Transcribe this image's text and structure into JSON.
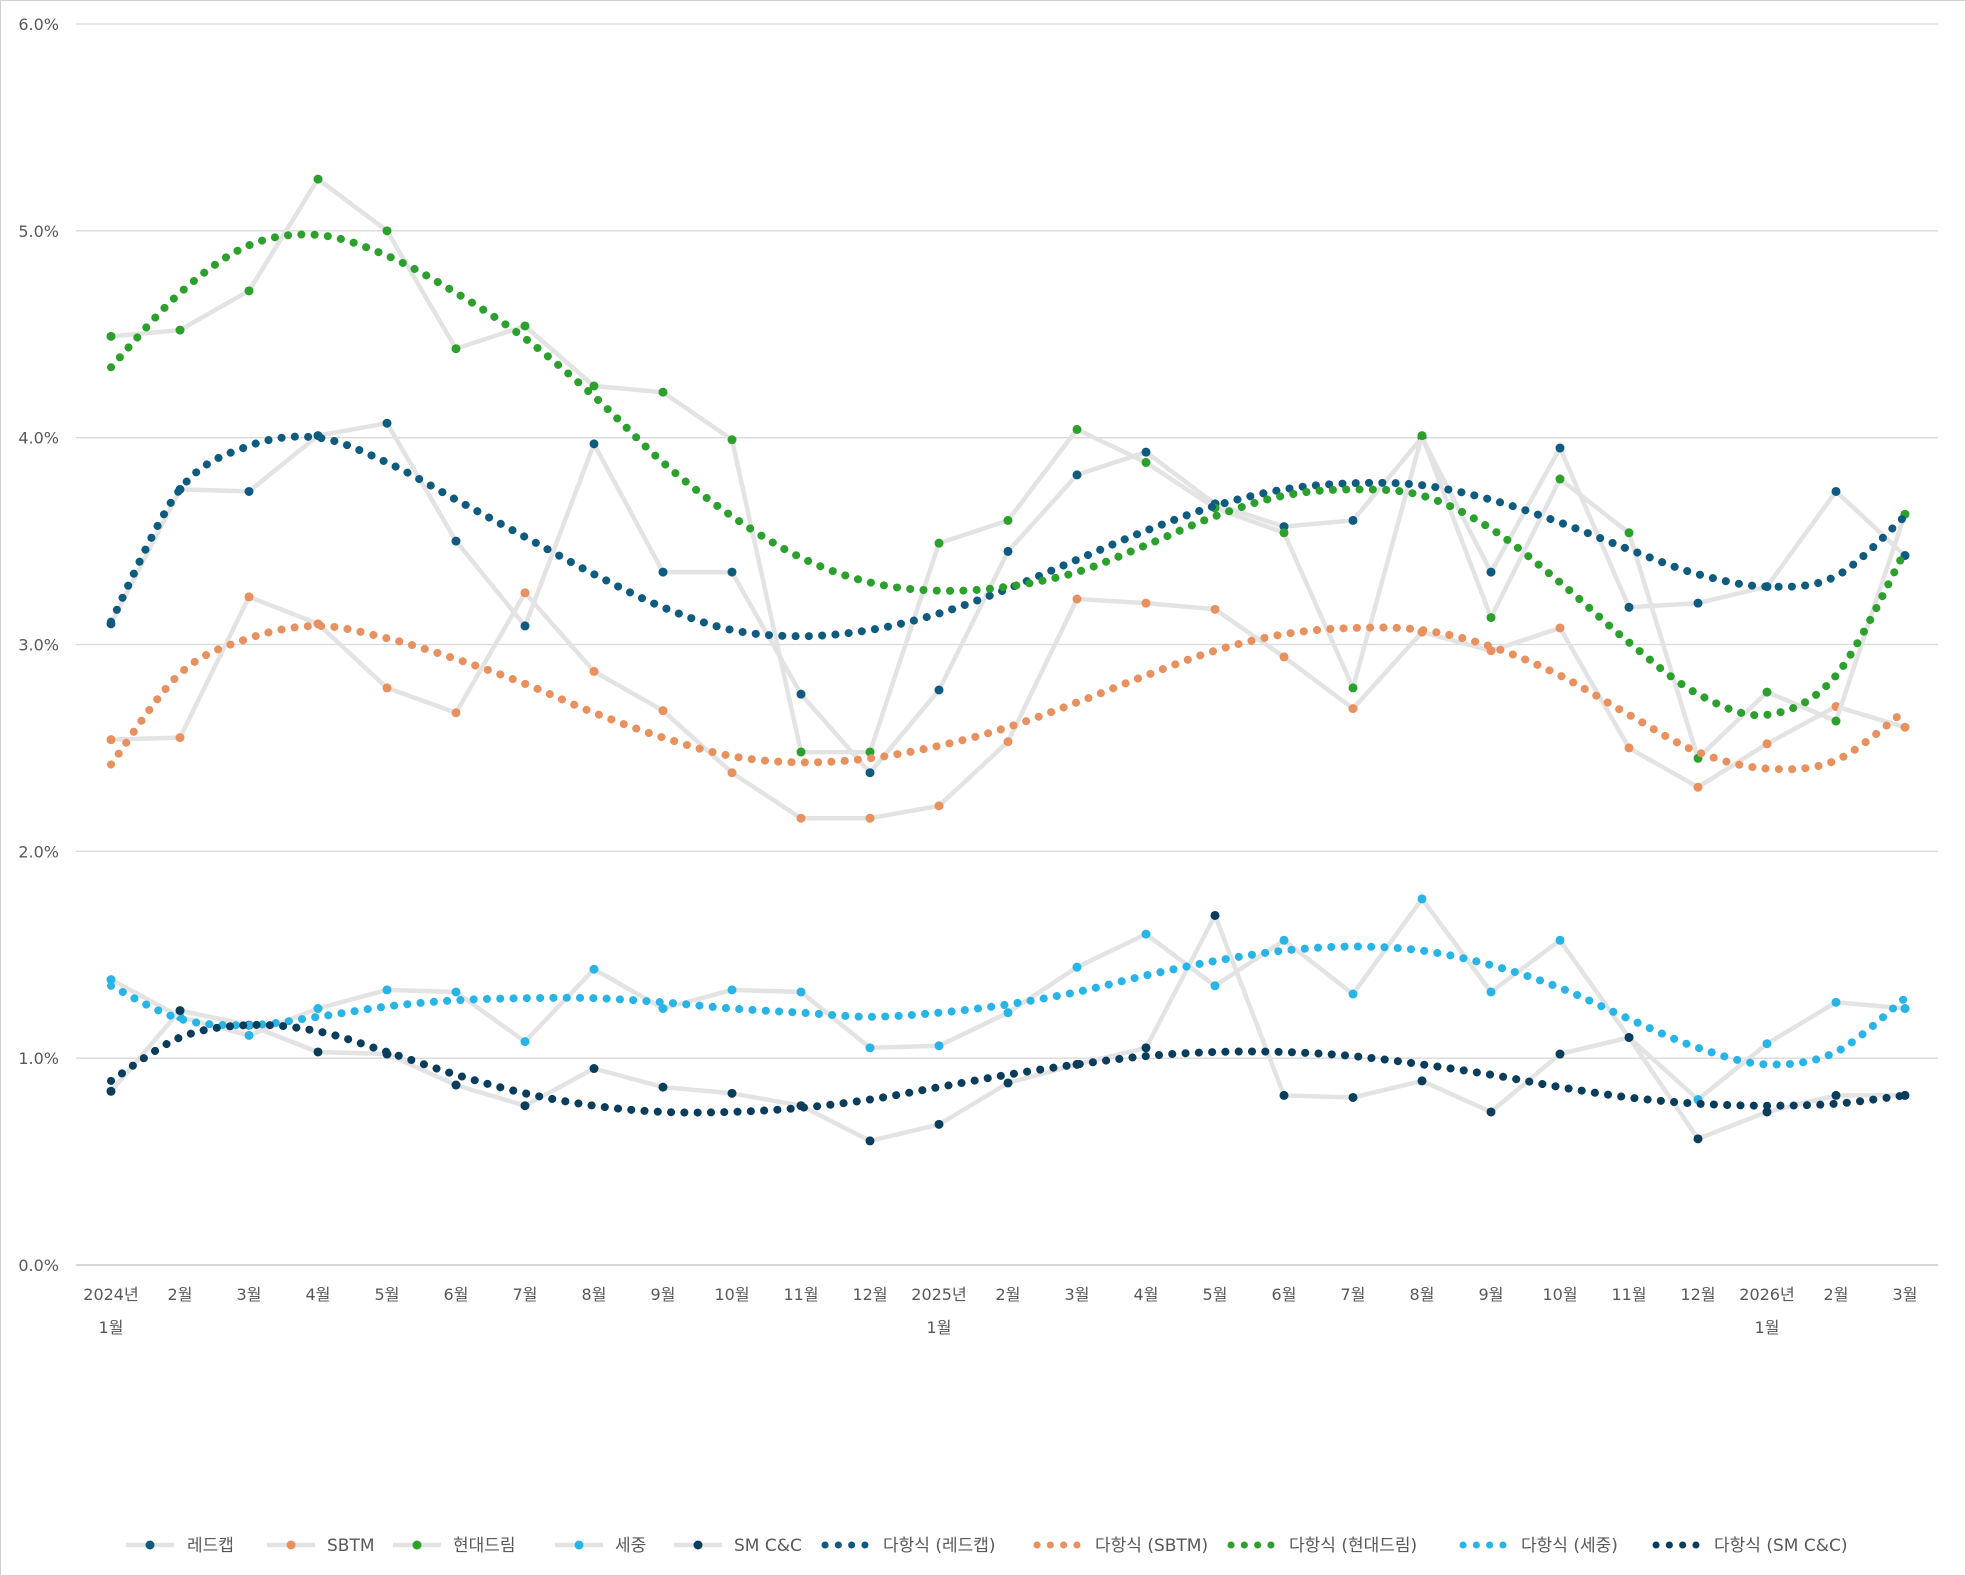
{
  "chart_data": {
    "type": "line",
    "title": "",
    "xlabel": "",
    "ylabel": "",
    "ylim": [
      0,
      0.06
    ],
    "yticks": [
      "0.0%",
      "1.0%",
      "2.0%",
      "3.0%",
      "4.0%",
      "5.0%",
      "6.0%"
    ],
    "grid": true,
    "legend_position": "bottom",
    "categories": [
      [
        "2024년",
        "1월"
      ],
      [
        "2월"
      ],
      [
        "3월"
      ],
      [
        "4월"
      ],
      [
        "5월"
      ],
      [
        "6월"
      ],
      [
        "7월"
      ],
      [
        "8월"
      ],
      [
        "9월"
      ],
      [
        "10월"
      ],
      [
        "11월"
      ],
      [
        "12월"
      ],
      [
        "2025년",
        "1월"
      ],
      [
        "2월"
      ],
      [
        "3월"
      ],
      [
        "4월"
      ],
      [
        "5월"
      ],
      [
        "6월"
      ],
      [
        "7월"
      ],
      [
        "8월"
      ],
      [
        "9월"
      ],
      [
        "10월"
      ],
      [
        "11월"
      ],
      [
        "12월"
      ],
      [
        "2026년",
        "1월"
      ],
      [
        "2월"
      ],
      [
        "3월"
      ]
    ],
    "series": [
      {
        "name": "레드캡",
        "color": "#0f5b80",
        "values": [
          0.031,
          0.0375,
          0.0374,
          0.0401,
          0.0407,
          0.035,
          0.0309,
          0.0397,
          0.0335,
          0.0335,
          0.0276,
          0.0238,
          0.0278,
          0.0345,
          0.0382,
          0.0393,
          0.0368,
          0.0357,
          0.036,
          0.04,
          0.0335,
          0.0395,
          0.0318,
          0.032,
          0.0328,
          0.0374,
          0.0343
        ]
      },
      {
        "name": "SBTM",
        "color": "#e8915e",
        "values": [
          0.0254,
          0.0255,
          0.0323,
          0.031,
          0.0279,
          0.0267,
          0.0325,
          0.0287,
          0.0268,
          0.0238,
          0.0216,
          0.0216,
          0.0222,
          0.0253,
          0.0322,
          0.032,
          0.0317,
          0.0294,
          0.0269,
          0.0306,
          0.0297,
          0.0308,
          0.025,
          0.0231,
          0.0252,
          0.027,
          0.026
        ]
      },
      {
        "name": "현대드림",
        "color": "#2ca02c",
        "values": [
          0.0449,
          0.0452,
          0.0471,
          0.0525,
          0.05,
          0.0443,
          0.0454,
          0.0425,
          0.0422,
          0.0399,
          0.0248,
          0.0248,
          0.0349,
          0.036,
          0.0404,
          0.0388,
          0.0366,
          0.0354,
          0.0279,
          0.0401,
          0.0313,
          0.038,
          0.0354,
          0.0245,
          0.0277,
          0.0263,
          0.0363
        ]
      },
      {
        "name": "세중",
        "color": "#28b4e6",
        "values": [
          0.0138,
          0.012,
          0.0111,
          0.0124,
          0.0133,
          0.0132,
          0.0108,
          0.0143,
          0.0124,
          0.0133,
          0.0132,
          0.0105,
          0.0106,
          0.0122,
          0.0144,
          0.016,
          0.0135,
          0.0157,
          0.0131,
          0.0177,
          0.0132,
          0.0157,
          0.011,
          0.008,
          0.0107,
          0.0127,
          0.0124
        ]
      },
      {
        "name": "SM C&C",
        "color": "#0a3d5c",
        "values": [
          0.0084,
          0.0123,
          0.0116,
          0.0103,
          0.0102,
          0.0087,
          0.0077,
          0.0095,
          0.0086,
          0.0083,
          0.0077,
          0.006,
          0.0068,
          0.0088,
          0.0097,
          0.0105,
          0.0169,
          0.0082,
          0.0081,
          0.0089,
          0.0074,
          0.0102,
          0.011,
          0.0061,
          0.0074,
          0.0082,
          0.0082
        ]
      }
    ],
    "trendlines": [
      {
        "name": "다항식 (레드캡)",
        "color": "#0f5b80",
        "values": [
          0.0311,
          0.0375,
          0.0396,
          0.04,
          0.0388,
          0.037,
          0.0352,
          0.0334,
          0.0318,
          0.0307,
          0.0304,
          0.0307,
          0.0315,
          0.0327,
          0.0341,
          0.0355,
          0.0367,
          0.0375,
          0.0378,
          0.0377,
          0.037,
          0.0359,
          0.0346,
          0.0334,
          0.0328,
          0.0333,
          0.0362
        ]
      },
      {
        "name": "다항식 (SBTM)",
        "color": "#e8915e",
        "values": [
          0.0242,
          0.0286,
          0.0303,
          0.0309,
          0.0303,
          0.0293,
          0.0281,
          0.0267,
          0.0255,
          0.0246,
          0.0243,
          0.0245,
          0.0251,
          0.026,
          0.0272,
          0.0285,
          0.0297,
          0.0305,
          0.0308,
          0.0307,
          0.0299,
          0.0285,
          0.0266,
          0.0248,
          0.024,
          0.0244,
          0.0268
        ]
      },
      {
        "name": "다항식 (현대드림)",
        "color": "#2ca02c",
        "values": [
          0.0434,
          0.047,
          0.0493,
          0.0498,
          0.0488,
          0.047,
          0.0448,
          0.042,
          0.0388,
          0.0362,
          0.0342,
          0.033,
          0.0326,
          0.0328,
          0.0335,
          0.0348,
          0.0362,
          0.0372,
          0.0375,
          0.0372,
          0.0356,
          0.033,
          0.0301,
          0.0276,
          0.0266,
          0.0285,
          0.0345
        ]
      },
      {
        "name": "다항식 (세중)",
        "color": "#28b4e6",
        "values": [
          0.0135,
          0.0119,
          0.0116,
          0.012,
          0.0125,
          0.0128,
          0.0129,
          0.0129,
          0.0127,
          0.0124,
          0.0122,
          0.012,
          0.0122,
          0.0126,
          0.0132,
          0.014,
          0.0147,
          0.0152,
          0.0154,
          0.0152,
          0.0145,
          0.0134,
          0.0119,
          0.0105,
          0.0097,
          0.0103,
          0.0129
        ]
      },
      {
        "name": "다항식 (SM C&C)",
        "color": "#0a3d5c",
        "values": [
          0.0089,
          0.011,
          0.0116,
          0.0113,
          0.0103,
          0.0092,
          0.0083,
          0.0077,
          0.0074,
          0.0074,
          0.0076,
          0.008,
          0.0086,
          0.0092,
          0.0097,
          0.0101,
          0.0103,
          0.0103,
          0.0101,
          0.0097,
          0.0092,
          0.0086,
          0.0081,
          0.0078,
          0.0077,
          0.0078,
          0.0082
        ]
      }
    ]
  }
}
